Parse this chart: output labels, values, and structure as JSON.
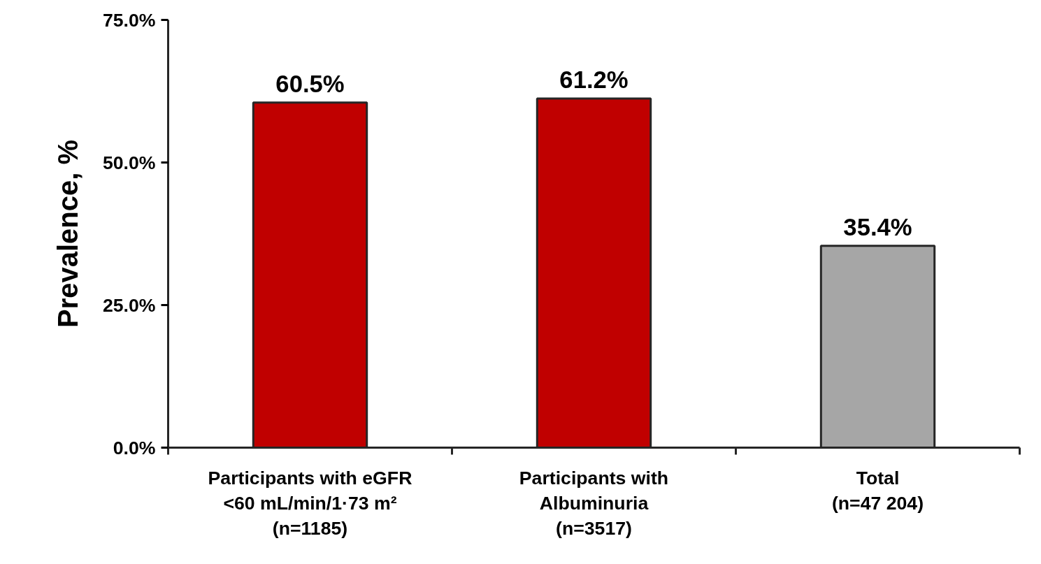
{
  "chart_data": {
    "type": "bar",
    "ylabel": "Prevalence, %",
    "categories": [
      "Participants with eGFR\n<60 mL/min/1·73 m²\n(n=1185)",
      "Participants with\nAlbuminuria\n(n=3517)",
      "Total\n(n=47 204)"
    ],
    "values": [
      60.5,
      61.2,
      35.4
    ],
    "colors": [
      "#c00000",
      "#c00000",
      "#a6a6a6"
    ],
    "value_labels": [
      "60.5%",
      "61.2%",
      "35.4%"
    ],
    "ylim": [
      0,
      75
    ],
    "yticks": [
      {
        "value": 0,
        "label": "0.0%"
      },
      {
        "value": 25,
        "label": "25.0%"
      },
      {
        "value": 50,
        "label": "50.0%"
      },
      {
        "value": 75,
        "label": "75.0%"
      }
    ],
    "grid": false
  }
}
